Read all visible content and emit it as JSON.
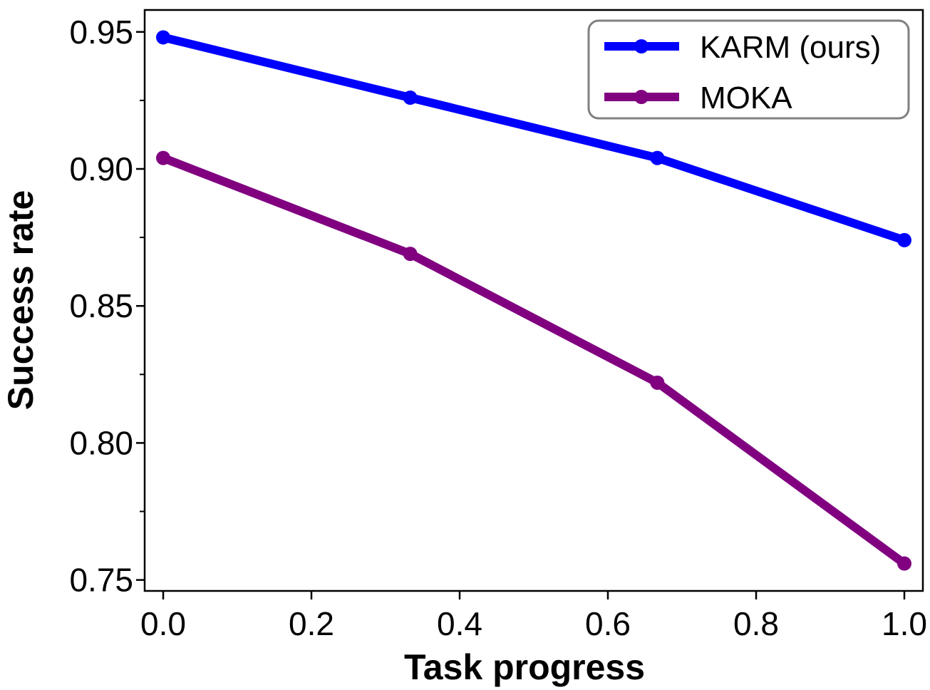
{
  "chart_data": {
    "type": "line",
    "title": "",
    "xlabel": "Task progress",
    "ylabel": "Success rate",
    "xlim": [
      -0.025,
      1.025
    ],
    "ylim": [
      0.746,
      0.958
    ],
    "x_ticks": [
      0.0,
      0.2,
      0.4,
      0.6,
      0.8,
      1.0
    ],
    "x_tick_labels": [
      "0.0",
      "0.2",
      "0.4",
      "0.6",
      "0.8",
      "1.0"
    ],
    "y_ticks_major": [
      0.75,
      0.8,
      0.85,
      0.9,
      0.95
    ],
    "y_tick_labels": [
      "0.75",
      "0.80",
      "0.85",
      "0.90",
      "0.95"
    ],
    "y_ticks_minor": [
      0.775,
      0.825,
      0.875,
      0.925
    ],
    "grid": false,
    "legend_position": "top-right",
    "series": [
      {
        "name": "KARM (ours)",
        "color": "#0000ff",
        "x": [
          0.0,
          0.3333,
          0.6667,
          1.0
        ],
        "values": [
          0.948,
          0.926,
          0.904,
          0.874
        ]
      },
      {
        "name": "MOKA",
        "color": "#800080",
        "x": [
          0.0,
          0.3333,
          0.6667,
          1.0
        ],
        "values": [
          0.904,
          0.869,
          0.822,
          0.756
        ]
      }
    ]
  }
}
